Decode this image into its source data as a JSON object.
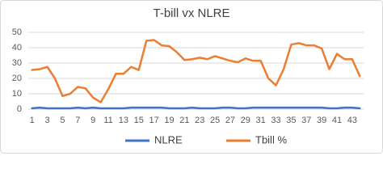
{
  "chart_data": {
    "type": "line",
    "title": "T-bill vx NLRE",
    "categories": [
      1,
      null,
      3,
      null,
      5,
      null,
      7,
      null,
      9,
      null,
      11,
      null,
      13,
      null,
      15,
      null,
      17,
      null,
      19,
      null,
      21,
      null,
      23,
      null,
      25,
      null,
      27,
      null,
      29,
      null,
      31,
      null,
      33,
      null,
      35,
      null,
      37,
      null,
      39,
      null,
      41,
      null,
      43,
      null
    ],
    "series": [
      {
        "name": "NLRE",
        "color": "#4472c4",
        "values": [
          0.5,
          1,
          0.5,
          0.5,
          0.5,
          0.5,
          1,
          0.5,
          1,
          0.5,
          0.5,
          0.5,
          0.5,
          1,
          1,
          1,
          1,
          1,
          0.5,
          0.5,
          0.5,
          1,
          0.5,
          0.5,
          0.5,
          1,
          1,
          0.5,
          0.5,
          1,
          1,
          1,
          1,
          1,
          1,
          1,
          1,
          1,
          1,
          0.5,
          0.5,
          1,
          1,
          0.5
        ]
      },
      {
        "name": "Tbill %",
        "color": "#ed7d31",
        "values": [
          25.5,
          26,
          27.5,
          20,
          8.5,
          10,
          14.5,
          13.5,
          7.5,
          4.5,
          13,
          23,
          23,
          27.5,
          25.5,
          44.5,
          45,
          41.5,
          41,
          37,
          32,
          32.5,
          33.5,
          32.5,
          34.5,
          33,
          31.5,
          30.5,
          33,
          31.5,
          31.5,
          20,
          15.5,
          26,
          42,
          43,
          41.5,
          41.5,
          39.5,
          26,
          36,
          32.5,
          32.5,
          21.5
        ]
      }
    ],
    "ylim": [
      0,
      50
    ],
    "yticks": [
      0,
      10,
      20,
      30,
      40,
      50
    ],
    "grid": true,
    "legend": "bottom"
  }
}
